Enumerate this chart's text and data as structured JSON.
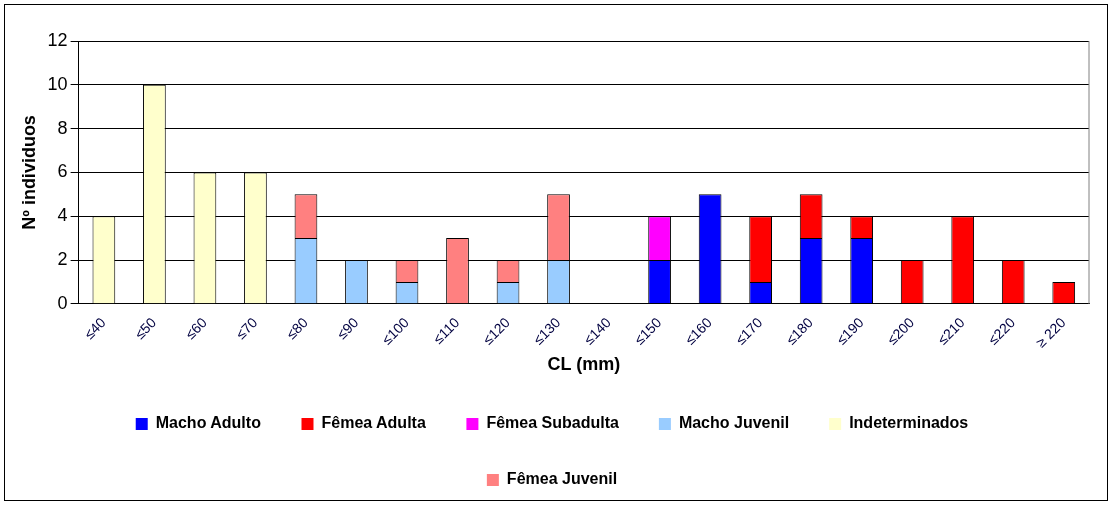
{
  "chart_data": {
    "type": "bar",
    "stacked": true,
    "xlabel": "CL (mm)",
    "ylabel": "Nº individuos",
    "categories": [
      "≤40",
      "≤50",
      "≤60",
      "≤70",
      "≤80",
      "≤90",
      "≤100",
      "≤110",
      "≤120",
      "≤130",
      "≤140",
      "≤150",
      "≤160",
      "≤170",
      "≤180",
      "≤190",
      "≤200",
      "≤210",
      "≤220",
      "≥ 220"
    ],
    "series": [
      {
        "name": "Macho Adulto",
        "color": "#0000ff",
        "values": [
          null,
          null,
          null,
          null,
          null,
          null,
          null,
          null,
          null,
          null,
          null,
          2,
          5,
          1,
          3,
          3,
          null,
          null,
          null,
          null
        ]
      },
      {
        "name": "Fêmea Adulta",
        "color": "#ff0000",
        "values": [
          null,
          null,
          null,
          null,
          null,
          null,
          null,
          null,
          null,
          null,
          null,
          null,
          null,
          3,
          2,
          1,
          2,
          4,
          2,
          1
        ]
      },
      {
        "name": "Fêmea Subadulta",
        "color": "#ff00ff",
        "values": [
          null,
          null,
          null,
          null,
          null,
          null,
          null,
          null,
          null,
          null,
          null,
          2,
          null,
          null,
          null,
          null,
          null,
          null,
          null,
          null
        ]
      },
      {
        "name": "Macho Juvenil",
        "color": "#99ccff",
        "values": [
          null,
          null,
          null,
          null,
          3,
          2,
          1,
          null,
          1,
          2,
          null,
          null,
          null,
          null,
          null,
          null,
          null,
          null,
          null,
          null
        ]
      },
      {
        "name": "Indeterminados",
        "color": "#ffffcc",
        "values": [
          4,
          10,
          6,
          6,
          null,
          null,
          null,
          null,
          null,
          null,
          null,
          null,
          null,
          null,
          null,
          null,
          null,
          null,
          null,
          null
        ]
      },
      {
        "name": "Fêmea Juvenil",
        "color": "#ff8080",
        "values": [
          null,
          null,
          null,
          null,
          2,
          null,
          1,
          3,
          1,
          3,
          null,
          null,
          null,
          null,
          null,
          null,
          null,
          null,
          null,
          null
        ]
      }
    ],
    "ylim": [
      0,
      12
    ],
    "yticks": [
      0,
      2,
      4,
      6,
      8,
      10,
      12
    ],
    "grid": "y",
    "legend": "bottom"
  }
}
